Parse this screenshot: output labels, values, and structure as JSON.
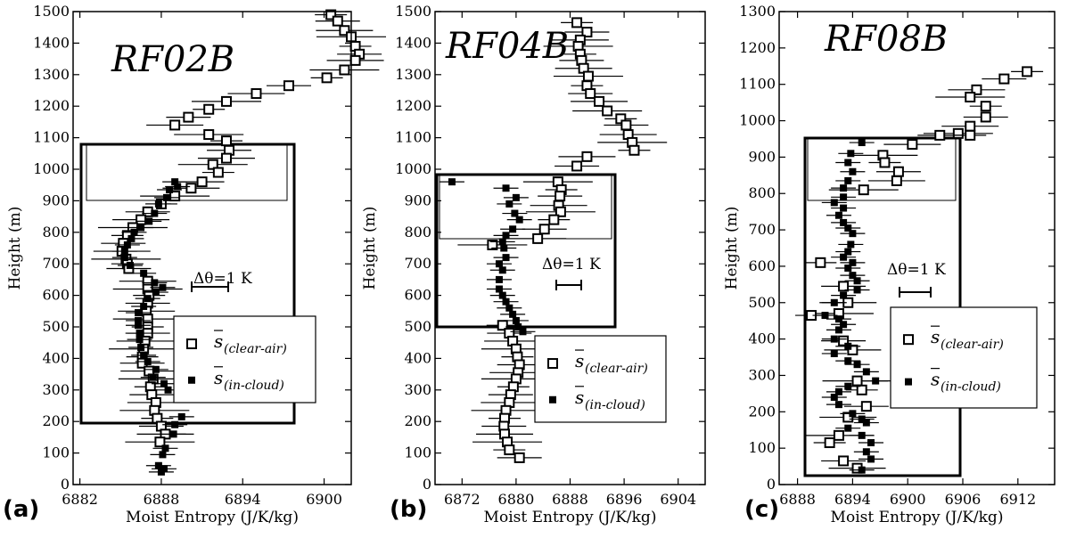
{
  "chart_data": [
    {
      "type": "scatter",
      "panel_label": "(a)",
      "title": "RF02B",
      "xlabel": "Moist Entropy (J/K/kg)",
      "ylabel": "Height (m)",
      "xlim": [
        6881.5,
        6902
      ],
      "ylim": [
        0,
        1500
      ],
      "xticks": [
        6882,
        6888,
        6894,
        6900
      ],
      "xtick_labels": [
        "6882",
        "6888",
        "6894",
        "6900"
      ],
      "yticks": [
        0,
        100,
        200,
        300,
        400,
        500,
        600,
        700,
        800,
        900,
        1000,
        1100,
        1200,
        1300,
        1400,
        1500
      ],
      "ytick_labels": [
        "0",
        "100",
        "200",
        "300",
        "400",
        "500",
        "600",
        "700",
        "800",
        "900",
        "1000",
        "1100",
        "1200",
        "1300",
        "1400",
        "1500"
      ],
      "annotation": "Δθ=1 K",
      "legend": {
        "clear_air": "s",
        "clear_air_sub": "(clear-air)",
        "in_cloud": "s",
        "in_cloud_sub": "(in-cloud)"
      },
      "colors": {
        "marks": "#000000",
        "background": "#ffffff"
      },
      "series": [
        {
          "marker": "open-square",
          "x": [
            6900.5,
            6901.0,
            6901.5,
            6902.0,
            6902.3,
            6902.6,
            6902.3,
            6901.5,
            6900.2,
            6897.4,
            6895.0,
            6892.8,
            6891.5,
            6890.0,
            6889.0,
            6891.5,
            6892.8,
            6893.0,
            6892.8,
            6891.8,
            6892.2,
            6891.0,
            6890.2,
            6889.0,
            6888.0,
            6887.0,
            6886.5,
            6885.9,
            6885.5,
            6885.2,
            6885.1,
            6885.4,
            6885.5,
            6885.6,
            6887.0,
            6887.0,
            6887.1,
            6887.0,
            6886.9,
            6887.0,
            6887.0,
            6887.0,
            6886.8,
            6886.7,
            6886.6,
            6886.6,
            6887.1,
            6887.4,
            6887.2,
            6887.3,
            6887.6,
            6887.5,
            6887.7,
            6888.0,
            6888.3,
            6887.9
          ],
          "y": [
            1490,
            1470,
            1440,
            1420,
            1390,
            1365,
            1345,
            1315,
            1290,
            1265,
            1240,
            1215,
            1190,
            1165,
            1140,
            1110,
            1090,
            1060,
            1035,
            1015,
            990,
            960,
            940,
            915,
            890,
            865,
            840,
            815,
            790,
            765,
            740,
            715,
            700,
            685,
            645,
            620,
            600,
            575,
            550,
            525,
            500,
            480,
            455,
            430,
            405,
            385,
            360,
            335,
            310,
            285,
            260,
            235,
            210,
            185,
            160,
            135
          ]
        },
        {
          "marker": "filled-square",
          "x": [
            6889.0,
            6889.2,
            6888.6,
            6888.4,
            6887.8,
            6887.5,
            6887.1,
            6886.5,
            6886.0,
            6885.8,
            6885.5,
            6885.3,
            6885.3,
            6885.7,
            6886.7,
            6887.5,
            6888.1,
            6887.6,
            6887.0,
            6886.7,
            6886.3,
            6886.3,
            6886.3,
            6886.4,
            6886.4,
            6886.5,
            6886.7,
            6887.0,
            6887.6,
            6887.4,
            6888.2,
            6888.5,
            6889.5,
            6889.0,
            6888.9,
            6888.3,
            6888.1,
            6887.8,
            6888.2,
            6888.0
          ],
          "y": [
            960,
            945,
            935,
            910,
            890,
            860,
            835,
            815,
            800,
            780,
            760,
            740,
            720,
            695,
            670,
            640,
            625,
            610,
            590,
            565,
            545,
            520,
            505,
            480,
            460,
            435,
            410,
            390,
            365,
            340,
            320,
            300,
            215,
            190,
            160,
            115,
            95,
            60,
            50,
            40
          ]
        }
      ]
    },
    {
      "type": "scatter",
      "panel_label": "(b)",
      "title": "RF04B",
      "xlabel": "Moist Entropy (J/K/kg)",
      "ylabel": "Height (m)",
      "xlim": [
        6868,
        6908
      ],
      "ylim": [
        0,
        1500
      ],
      "xticks": [
        6872,
        6880,
        6888,
        6896,
        6904
      ],
      "xtick_labels": [
        "6872",
        "6880",
        "6888",
        "6896",
        "6904"
      ],
      "yticks": [
        0,
        100,
        200,
        300,
        400,
        500,
        600,
        700,
        800,
        900,
        1000,
        1100,
        1200,
        1300,
        1400,
        1500
      ],
      "ytick_labels": [
        "0",
        "100",
        "200",
        "300",
        "400",
        "500",
        "600",
        "700",
        "800",
        "900",
        "1000",
        "1100",
        "1200",
        "1300",
        "1400",
        "1500"
      ],
      "annotation": "Δθ=1 K",
      "legend": {
        "clear_air": "s",
        "clear_air_sub": "(clear-air)",
        "in_cloud": "s",
        "in_cloud_sub": "(in-cloud)"
      },
      "colors": {
        "marks": "#000000",
        "background": "#ffffff"
      },
      "series": [
        {
          "marker": "open-square",
          "x": [
            6889.0,
            6890.5,
            6889.5,
            6889.2,
            6889.5,
            6889.7,
            6890.0,
            6890.7,
            6890.5,
            6891.0,
            6892.3,
            6893.5,
            6895.5,
            6896.3,
            6896.6,
            6897.2,
            6897.5,
            6889.0,
            6890.5,
            6886.2,
            6886.7,
            6886.5,
            6886.3,
            6886.6,
            6885.6,
            6884.2,
            6883.2,
            6876.5,
            6878.0,
            6879.0,
            6879.5,
            6880.0,
            6880.2,
            6880.5,
            6880.3,
            6880.0,
            6879.6,
            6879.2,
            6879.0,
            6878.5,
            6878.3,
            6878.2,
            6878.3,
            6878.7,
            6879.0,
            6880.5
          ],
          "y": [
            1465,
            1435,
            1410,
            1390,
            1365,
            1345,
            1320,
            1295,
            1265,
            1240,
            1215,
            1185,
            1160,
            1140,
            1110,
            1085,
            1060,
            1010,
            1040,
            960,
            935,
            915,
            885,
            865,
            840,
            810,
            780,
            760,
            505,
            480,
            455,
            430,
            405,
            380,
            355,
            335,
            310,
            285,
            260,
            235,
            210,
            185,
            160,
            135,
            110,
            85
          ]
        },
        {
          "marker": "filled-square",
          "x": [
            6870.5,
            6878.5,
            6880.0,
            6879.0,
            6879.8,
            6880.5,
            6879.5,
            6878.5,
            6878.0,
            6878.2,
            6878.5,
            6877.5,
            6878.0,
            6877.5,
            6877.5,
            6878.0,
            6878.5,
            6879.0,
            6879.5,
            6880.0,
            6880.3,
            6881.0
          ],
          "y": [
            960,
            940,
            910,
            890,
            860,
            840,
            810,
            790,
            770,
            750,
            720,
            700,
            680,
            650,
            620,
            600,
            580,
            560,
            540,
            520,
            500,
            485
          ]
        }
      ]
    },
    {
      "type": "scatter",
      "panel_label": "(c)",
      "title": "RF08B",
      "xlabel": "Moist Entropy (J/K/kg)",
      "ylabel": "Height (m)",
      "xlim": [
        6886,
        6916
      ],
      "ylim": [
        0,
        1300
      ],
      "xticks": [
        6888,
        6894,
        6900,
        6906,
        6912
      ],
      "xtick_labels": [
        "6888",
        "6894",
        "6900",
        "6906",
        "6912"
      ],
      "yticks": [
        0,
        100,
        200,
        300,
        400,
        500,
        600,
        700,
        800,
        900,
        1000,
        1100,
        1200,
        1300
      ],
      "ytick_labels": [
        "0",
        "100",
        "200",
        "300",
        "400",
        "500",
        "600",
        "700",
        "800",
        "900",
        "1000",
        "1100",
        "1200",
        "1300"
      ],
      "annotation": "Δθ=1 K",
      "legend": {
        "clear_air": "s",
        "clear_air_sub": "(clear-air)",
        "in_cloud": "s",
        "in_cloud_sub": "(in-cloud)"
      },
      "colors": {
        "marks": "#000000",
        "background": "#ffffff"
      },
      "series": [
        {
          "marker": "open-square",
          "x": [
            6913.0,
            6910.5,
            6907.5,
            6906.8,
            6908.5,
            6908.5,
            6906.8,
            6905.5,
            6906.8,
            6903.5,
            6900.5,
            6897.3,
            6897.5,
            6899.0,
            6898.8,
            6895.2,
            6890.5,
            6893.0,
            6893.5,
            6892.5,
            6889.5,
            6893.0,
            6894.0,
            6894.5,
            6895.0,
            6895.5,
            6893.5,
            6892.5,
            6891.5,
            6893.0,
            6894.5
          ],
          "y": [
            1135,
            1115,
            1085,
            1065,
            1040,
            1010,
            985,
            965,
            960,
            960,
            935,
            905,
            885,
            860,
            835,
            810,
            610,
            545,
            500,
            470,
            465,
            395,
            370,
            285,
            260,
            215,
            185,
            135,
            115,
            65,
            45
          ]
        },
        {
          "marker": "filled-square",
          "x": [
            6895.0,
            6893.8,
            6893.5,
            6894.0,
            6893.5,
            6893.0,
            6893.0,
            6892.0,
            6893.0,
            6892.5,
            6893.0,
            6893.5,
            6894.0,
            6893.8,
            6893.5,
            6893.0,
            6894.0,
            6893.5,
            6894.0,
            6894.5,
            6894.5,
            6893.0,
            6892.0,
            6891.0,
            6892.5,
            6893.0,
            6892.5,
            6892.0,
            6893.5,
            6892.0,
            6893.5,
            6894.5,
            6895.5,
            6896.5,
            6893.5,
            6892.5,
            6892.0,
            6892.5,
            6894.0,
            6895.0,
            6895.5,
            6893.5,
            6895.0,
            6896.0,
            6895.5,
            6896.0,
            6895.0
          ],
          "y": [
            940,
            910,
            885,
            860,
            835,
            815,
            790,
            775,
            760,
            740,
            720,
            705,
            690,
            660,
            640,
            625,
            610,
            595,
            575,
            560,
            535,
            520,
            500,
            465,
            455,
            440,
            425,
            400,
            380,
            360,
            340,
            330,
            310,
            285,
            270,
            255,
            240,
            220,
            195,
            180,
            170,
            155,
            135,
            115,
            90,
            70,
            40
          ]
        }
      ]
    }
  ]
}
